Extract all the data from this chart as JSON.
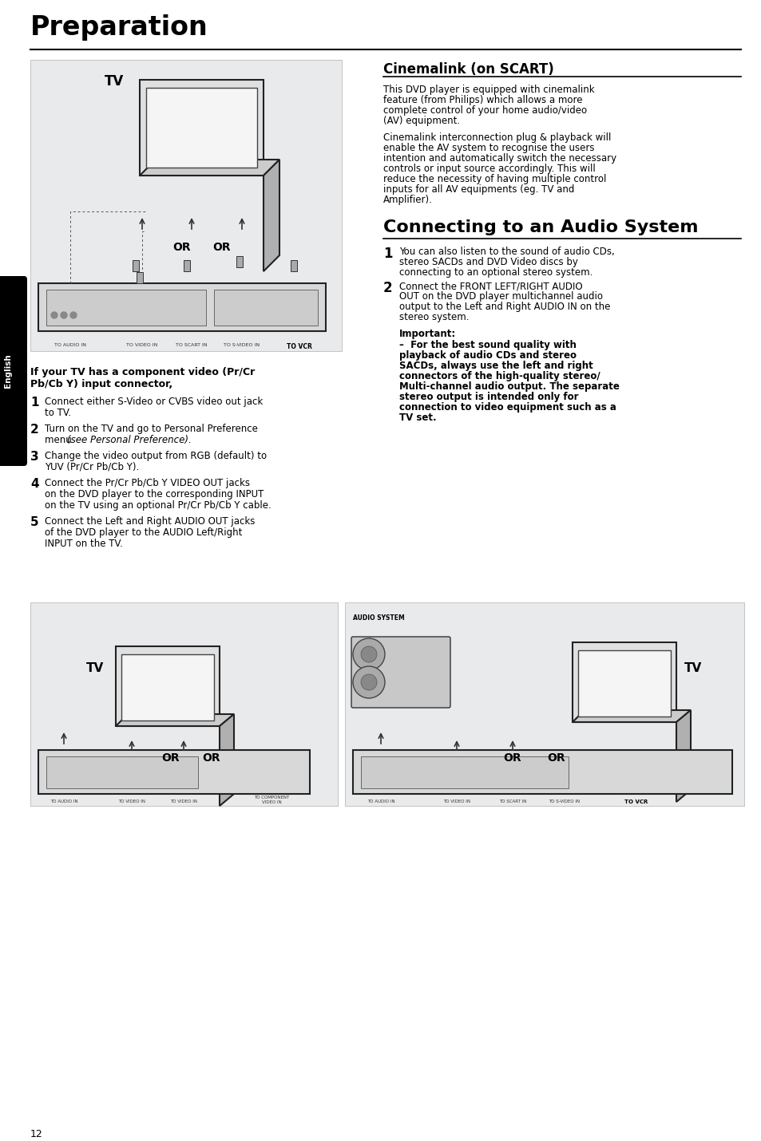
{
  "bg_color": "#ffffff",
  "title": "Preparation",
  "sidebar_text": "English",
  "sidebar_bg": "#000000",
  "sidebar_text_color": "#ffffff",
  "cinemalink_title": "Cinemalink (on SCART)",
  "cinemalink_body_para1": [
    "This DVD player is equipped with cinemalink",
    "feature (from Philips) which allows a more",
    "complete control of your home audio/video",
    "(AV) equipment."
  ],
  "cinemalink_body_para2": [
    "Cinemalink interconnection plug & playback will",
    "enable the AV system to recognise the users",
    "intention and automatically switch the necessary",
    "controls or input source accordingly. This will",
    "reduce the necessity of having multiple control",
    "inputs for all AV equipments (eg. TV and",
    "Amplifier)."
  ],
  "audio_title": "Connecting to an Audio System",
  "audio_item1_num": "1",
  "audio_item1_lines": [
    "You can also listen to the sound of audio CDs,",
    "stereo SACDs and DVD Video discs by",
    "connecting to an optional stereo system."
  ],
  "audio_item2_num": "2",
  "audio_item2_lines": [
    "Connect the FRONT LEFT/RIGHT AUDIO",
    "OUT on the DVD player multichannel audio",
    "output to the Left and Right AUDIO IN on the",
    "stereo system."
  ],
  "important_title": "Important:",
  "important_lines": [
    "–  For the best sound quality with",
    "playback of audio CDs and stereo",
    "SACDs, always use the left and right",
    "connectors of the high-quality stereo/",
    "Multi-channel audio output. The separate",
    "stereo output is intended only for",
    "connection to video equipment such as a",
    "TV set."
  ],
  "left_title_line1": "If your TV has a component video (Pr/Cr",
  "left_title_line2": "Pb/Cb Y) input connector,",
  "left_items": [
    {
      "num": "1",
      "lines": [
        "Connect either S-Video or CVBS video out jack",
        "to TV."
      ]
    },
    {
      "num": "2",
      "lines": [
        "Turn on the TV and go to Personal Preference",
        "menu (see Personal Preference)."
      ]
    },
    {
      "num": "3",
      "lines": [
        "Change the video output from RGB (default) to",
        "YUV (Pr/Cr Pb/Cb Y)."
      ]
    },
    {
      "num": "4",
      "lines": [
        "Connect the Pr/Cr Pb/Cb Y VIDEO OUT jacks",
        "on the DVD player to the corresponding INPUT",
        "on the TV using an optional Pr/Cr Pb/Cb Y cable."
      ]
    },
    {
      "num": "5",
      "lines": [
        "Connect the Left and Right AUDIO OUT jacks",
        "of the DVD player to the AUDIO Left/Right",
        "INPUT on the TV."
      ]
    }
  ],
  "page_number": "12",
  "diag_fill": "#e8eaec",
  "diag_edge": "#b0b0b0"
}
